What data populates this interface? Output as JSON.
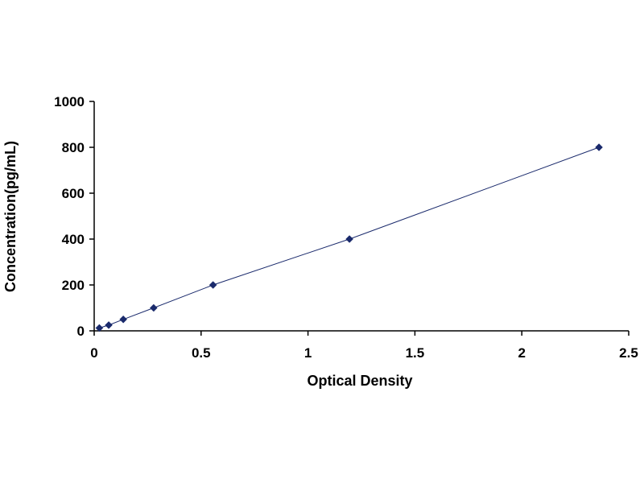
{
  "chart_data": {
    "type": "scatter",
    "title": "",
    "xlabel": "Optical Density",
    "ylabel": "Concentration(pg/mL)",
    "xlim": [
      0,
      2.5
    ],
    "ylim": [
      0,
      1000
    ],
    "x_ticks": [
      "0",
      "0.5",
      "1",
      "1.5",
      "2",
      "2.5"
    ],
    "y_ticks": [
      "0",
      "200",
      "400",
      "600",
      "800",
      "1000"
    ],
    "grid": false,
    "legend": "none",
    "marker": "diamond",
    "marker_color": "#1a2a6c",
    "line_color": "#1a2a6c",
    "trendline": true,
    "series": [
      {
        "x": [
          0.024,
          0.068,
          0.136,
          0.278,
          0.556,
          1.194,
          2.361
        ],
        "y": [
          12.5,
          25,
          50,
          100,
          200,
          400,
          800
        ]
      }
    ]
  }
}
